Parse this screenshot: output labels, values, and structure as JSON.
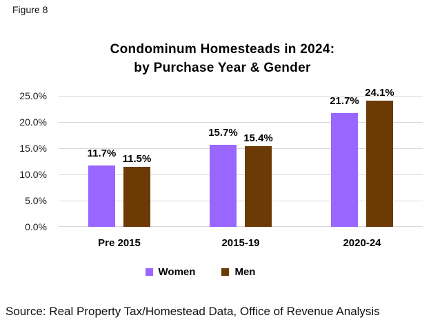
{
  "figure_label": "Figure 8",
  "source_note": "Source: Real Property Tax/Homestead Data, Office of Revenue Analysis",
  "chart_data": {
    "type": "bar",
    "title_line1": "Condominum Homesteads in 2024:",
    "title_line2": "by Purchase Year & Gender",
    "categories": [
      "Pre 2015",
      "2015-19",
      "2020-24"
    ],
    "series": [
      {
        "name": "Women",
        "color": "#9966FF",
        "values": [
          11.7,
          15.7,
          21.7
        ],
        "data_labels": [
          "11.7%",
          "15.7%",
          "21.7%"
        ]
      },
      {
        "name": "Men",
        "color": "#6B3A05",
        "values": [
          11.5,
          15.4,
          24.1
        ],
        "data_labels": [
          "11.5%",
          "15.4%",
          "24.1%"
        ]
      }
    ],
    "y_axis": {
      "min": 0,
      "max": 25,
      "ticks": [
        {
          "label": "0.0%",
          "value": 0
        },
        {
          "label": "5.0%",
          "value": 5
        },
        {
          "label": "10.0%",
          "value": 10
        },
        {
          "label": "15.0%",
          "value": 15
        },
        {
          "label": "20.0%",
          "value": 20
        },
        {
          "label": "25.0%",
          "value": 25
        }
      ]
    },
    "grid": true,
    "gridline_color": "#D9D9D9",
    "legend_position": "bottom"
  }
}
